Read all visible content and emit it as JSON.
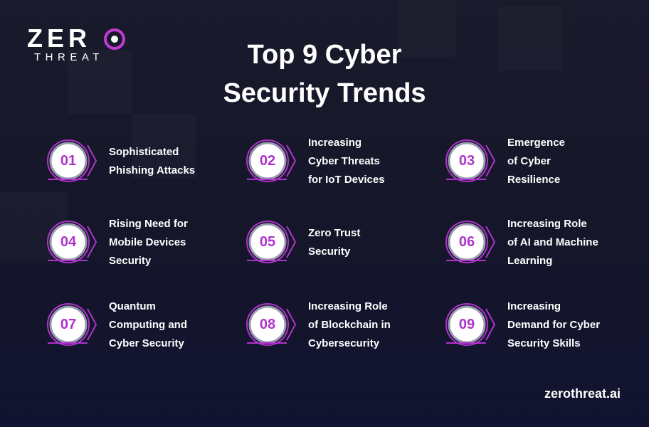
{
  "logo": {
    "word1": "ZER",
    "word2": "THREAT"
  },
  "title": {
    "line1": "Top 9 Cyber",
    "line2": "Security Trends"
  },
  "trends": [
    {
      "number": "01",
      "lines": [
        "Sophisticated",
        "Phishing Attacks"
      ]
    },
    {
      "number": "02",
      "lines": [
        "Increasing",
        "Cyber Threats",
        "for IoT Devices"
      ]
    },
    {
      "number": "03",
      "lines": [
        "Emergence",
        "of Cyber",
        "Resilience"
      ]
    },
    {
      "number": "04",
      "lines": [
        "Rising Need for",
        "Mobile Devices",
        "Security"
      ]
    },
    {
      "number": "05",
      "lines": [
        "Zero Trust",
        "Security"
      ]
    },
    {
      "number": "06",
      "lines": [
        "Increasing Role",
        "of AI and Machine",
        "Learning"
      ]
    },
    {
      "number": "07",
      "lines": [
        "Quantum",
        "Computing and",
        "Cyber Security"
      ]
    },
    {
      "number": "08",
      "lines": [
        "Increasing Role",
        "of Blockchain in",
        "Cybersecurity"
      ]
    },
    {
      "number": "09",
      "lines": [
        "Increasing",
        "Demand for Cyber",
        "Security Skills"
      ]
    }
  ],
  "website": "zerothreat.ai",
  "colors": {
    "accent": "#b032cc",
    "background": "#17182b",
    "text": "#ffffff"
  },
  "icons": {
    "badge": "numbered-circle-with-chevron",
    "logo_mark": "ring-icon"
  }
}
